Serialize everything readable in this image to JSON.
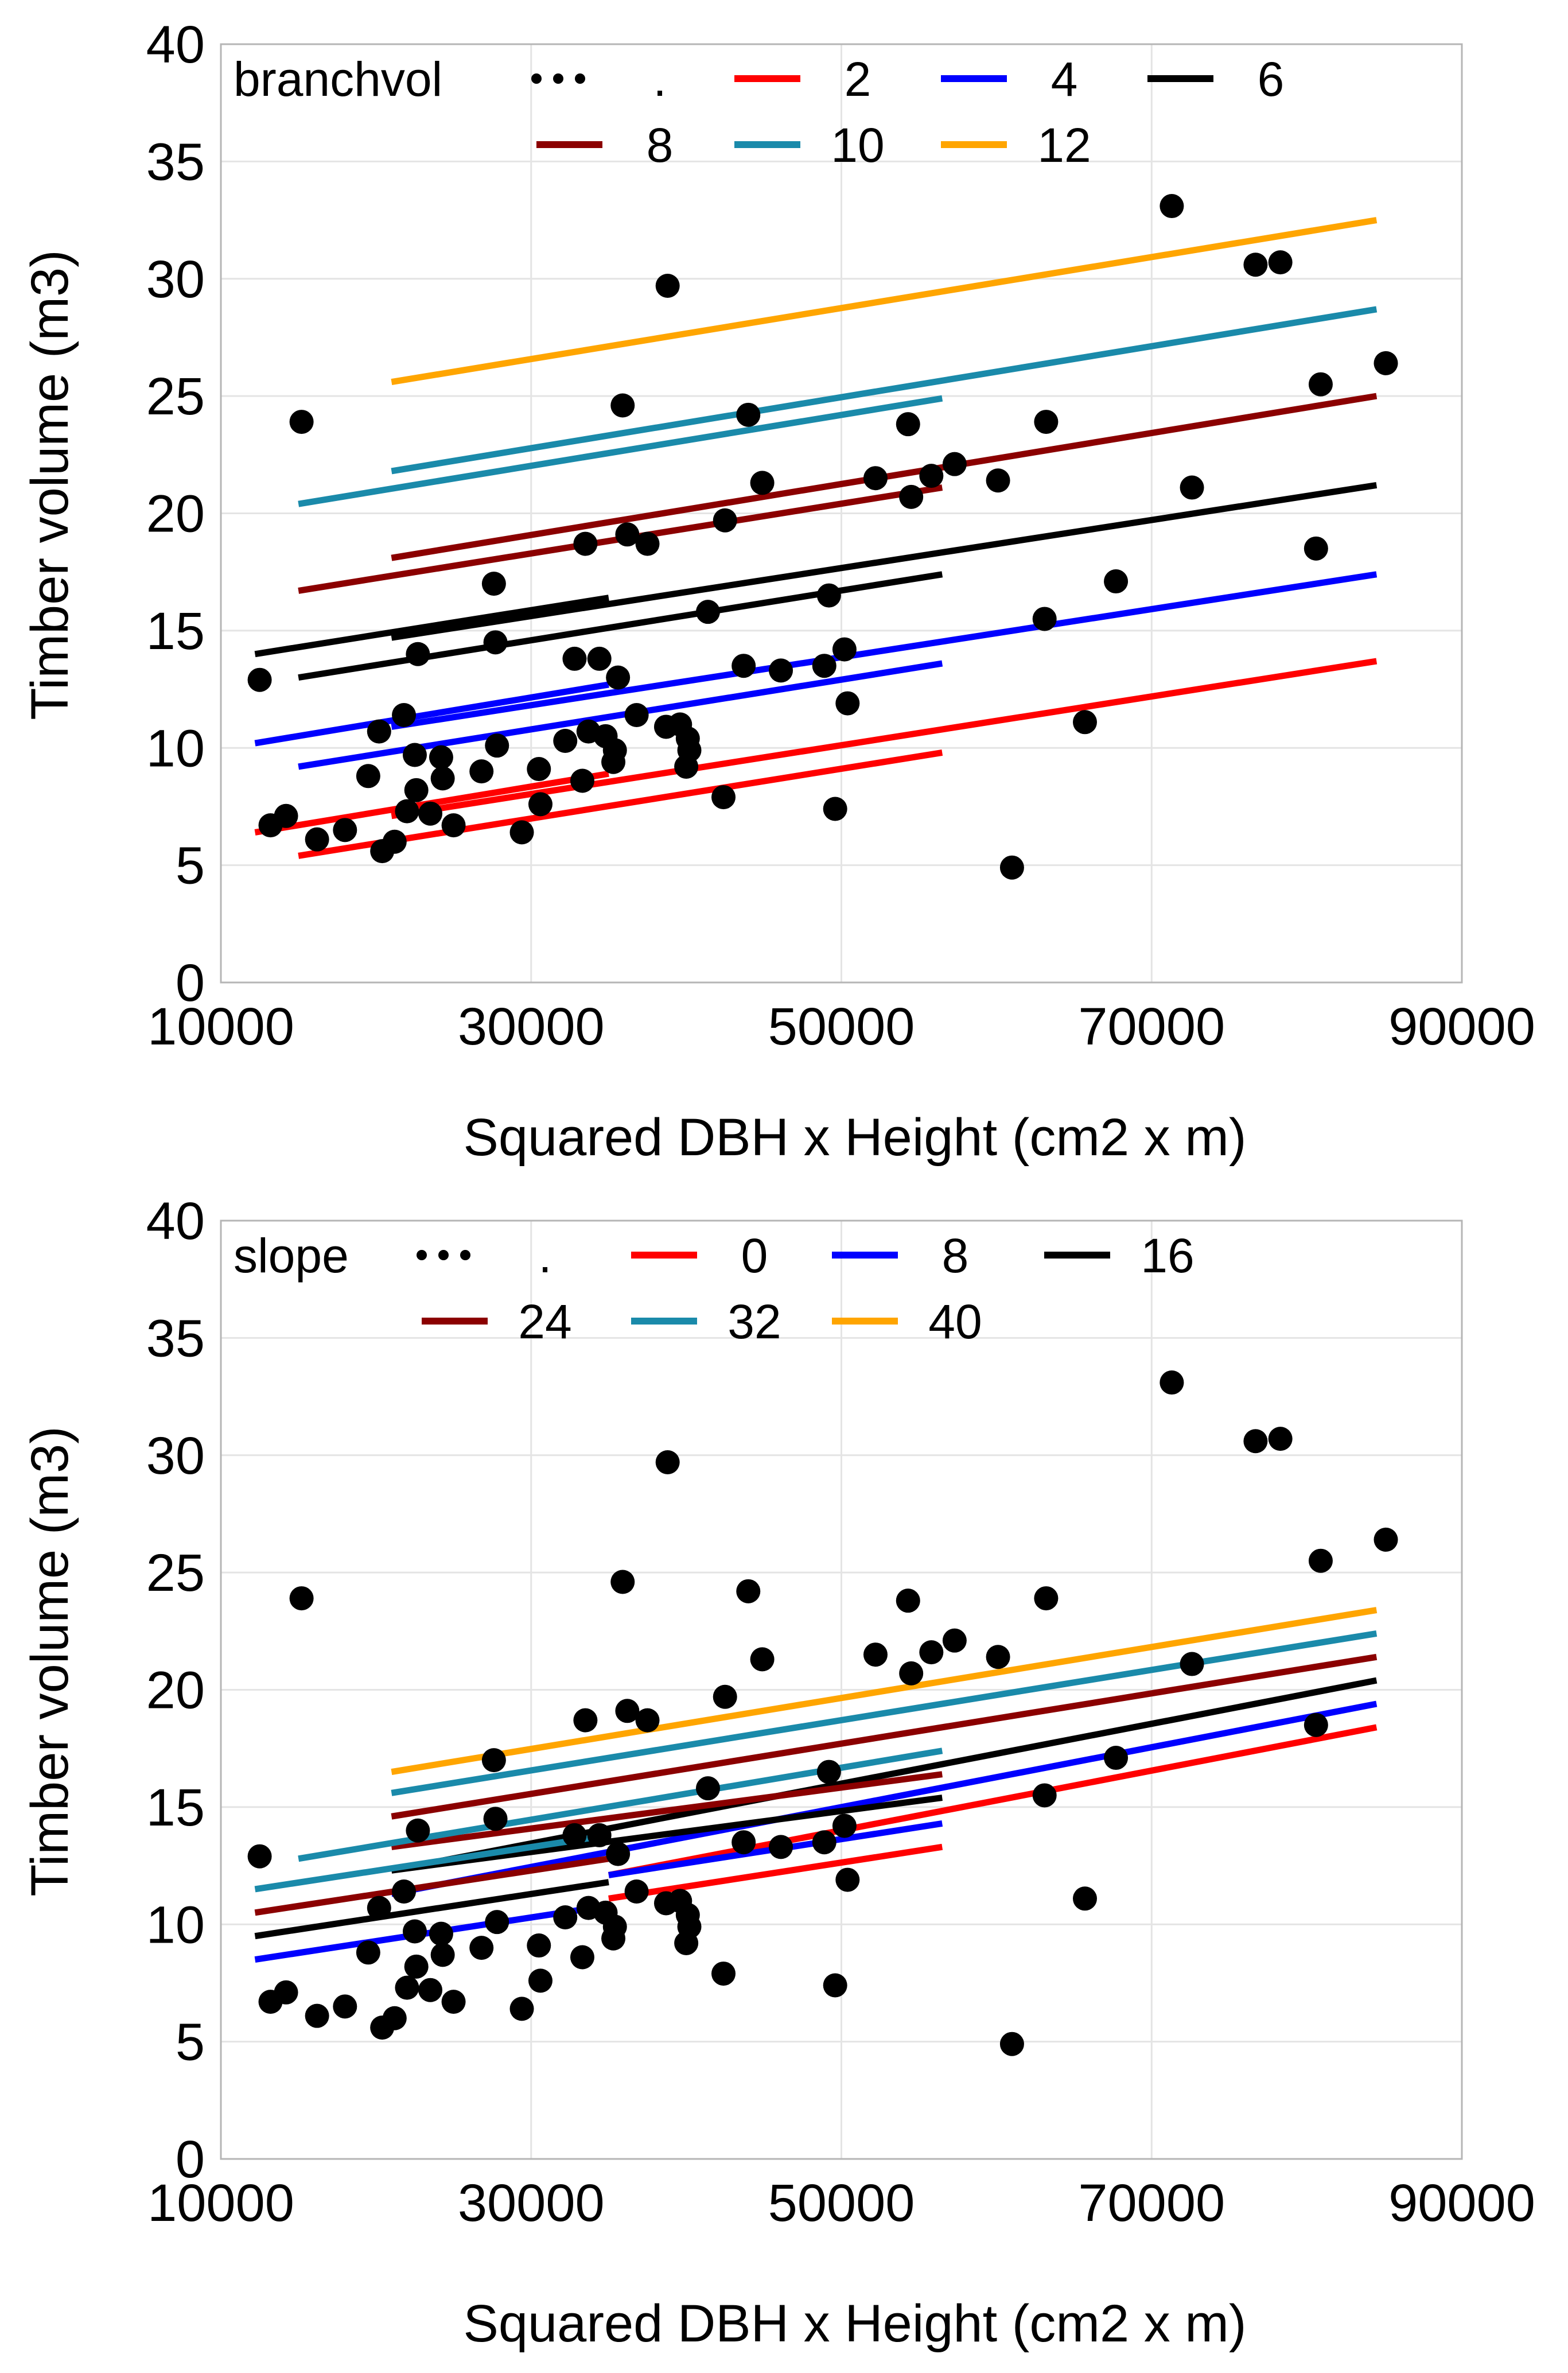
{
  "chart_data": [
    {
      "type": "scatter",
      "xlabel": "Squared DBH x Height (cm2 x m)",
      "ylabel": "Timber volume (m3)",
      "xlim": [
        10000,
        90000
      ],
      "ylim": [
        0,
        40
      ],
      "xticks": [
        "10000",
        "30000",
        "50000",
        "70000",
        "90000"
      ],
      "yticks": [
        "0",
        "5",
        "10",
        "15",
        "20",
        "25",
        "30",
        "35",
        "40"
      ],
      "grid": true,
      "legend": {
        "title": "branchvol",
        "placement": "top-left",
        "entries": [
          {
            "label": ".",
            "style": "dots",
            "color": "#000000"
          },
          {
            "label": "2",
            "style": "line",
            "color": "#ff0000"
          },
          {
            "label": "4",
            "style": "line",
            "color": "#0000ff"
          },
          {
            "label": "6",
            "style": "line",
            "color": "#000000"
          },
          {
            "label": "8",
            "style": "line",
            "color": "#8b0000"
          },
          {
            "label": "10",
            "style": "line",
            "color": "#1a8aaa"
          },
          {
            "label": "12",
            "style": "line",
            "color": "#ffa500"
          }
        ]
      },
      "points": [
        [
          12500,
          12.9
        ],
        [
          13200,
          6.7
        ],
        [
          14200,
          7.1
        ],
        [
          15200,
          23.9
        ],
        [
          16200,
          6.1
        ],
        [
          18000,
          6.5
        ],
        [
          19500,
          8.8
        ],
        [
          20200,
          10.7
        ],
        [
          20400,
          5.6
        ],
        [
          21200,
          6.0
        ],
        [
          21800,
          11.4
        ],
        [
          22000,
          7.3
        ],
        [
          22500,
          9.7
        ],
        [
          22600,
          8.2
        ],
        [
          22700,
          14.0
        ],
        [
          23500,
          7.2
        ],
        [
          24200,
          9.6
        ],
        [
          24300,
          8.7
        ],
        [
          25000,
          6.7
        ],
        [
          26800,
          9.0
        ],
        [
          27600,
          17.0
        ],
        [
          27700,
          14.5
        ],
        [
          27800,
          10.1
        ],
        [
          29400,
          6.4
        ],
        [
          30500,
          9.1
        ],
        [
          30600,
          7.6
        ],
        [
          32200,
          10.3
        ],
        [
          32800,
          13.8
        ],
        [
          33300,
          8.6
        ],
        [
          33500,
          18.7
        ],
        [
          33700,
          10.7
        ],
        [
          34400,
          13.8
        ],
        [
          34800,
          10.5
        ],
        [
          35300,
          9.4
        ],
        [
          35400,
          9.9
        ],
        [
          35600,
          13.0
        ],
        [
          35900,
          24.6
        ],
        [
          36200,
          19.1
        ],
        [
          36800,
          11.4
        ],
        [
          37500,
          18.7
        ],
        [
          38700,
          10.9
        ],
        [
          38800,
          29.7
        ],
        [
          39600,
          11.0
        ],
        [
          40000,
          9.2
        ],
        [
          40100,
          10.4
        ],
        [
          40200,
          9.9
        ],
        [
          41400,
          15.8
        ],
        [
          42400,
          7.9
        ],
        [
          42500,
          19.7
        ],
        [
          43700,
          13.5
        ],
        [
          44000,
          24.2
        ],
        [
          44900,
          21.3
        ],
        [
          46100,
          13.3
        ],
        [
          48900,
          13.5
        ],
        [
          49200,
          16.5
        ],
        [
          49600,
          7.4
        ],
        [
          50200,
          14.2
        ],
        [
          50400,
          11.9
        ],
        [
          52200,
          21.5
        ],
        [
          54300,
          23.8
        ],
        [
          54500,
          20.7
        ],
        [
          55800,
          21.6
        ],
        [
          57300,
          22.1
        ],
        [
          60100,
          21.4
        ],
        [
          61000,
          4.9
        ],
        [
          63100,
          15.5
        ],
        [
          63200,
          23.9
        ],
        [
          65700,
          11.1
        ],
        [
          67700,
          17.1
        ],
        [
          71300,
          33.1
        ],
        [
          72600,
          21.1
        ],
        [
          76700,
          30.6
        ],
        [
          78300,
          30.7
        ],
        [
          80600,
          18.5
        ],
        [
          80900,
          25.5
        ],
        [
          85100,
          26.4
        ]
      ],
      "series": [
        {
          "name": "2",
          "color": "#ff0000",
          "lines": [
            [
              [
                12200,
                6.4
              ],
              [
                35000,
                8.9
              ]
            ],
            [
              [
                15000,
                5.4
              ],
              [
                56500,
                9.8
              ]
            ],
            [
              [
                21000,
                7.1
              ],
              [
                84500,
                13.7
              ]
            ]
          ]
        },
        {
          "name": "4",
          "color": "#0000ff",
          "lines": [
            [
              [
                12200,
                10.2
              ],
              [
                35000,
                12.7
              ]
            ],
            [
              [
                15000,
                9.2
              ],
              [
                56500,
                13.6
              ]
            ],
            [
              [
                21000,
                10.9
              ],
              [
                84500,
                17.4
              ]
            ]
          ]
        },
        {
          "name": "6",
          "color": "#000000",
          "lines": [
            [
              [
                12200,
                14.0
              ],
              [
                35000,
                16.4
              ]
            ],
            [
              [
                15000,
                13.0
              ],
              [
                56500,
                17.4
              ]
            ],
            [
              [
                21000,
                14.7
              ],
              [
                84500,
                21.2
              ]
            ]
          ]
        },
        {
          "name": "8",
          "color": "#8b0000",
          "lines": [
            [
              [
                15000,
                16.7
              ],
              [
                56500,
                21.1
              ]
            ],
            [
              [
                21000,
                18.1
              ],
              [
                84500,
                25.0
              ]
            ]
          ]
        },
        {
          "name": "10",
          "color": "#1a8aaa",
          "lines": [
            [
              [
                15000,
                20.4
              ],
              [
                56500,
                24.9
              ]
            ],
            [
              [
                21000,
                21.8
              ],
              [
                84500,
                28.7
              ]
            ]
          ]
        },
        {
          "name": "12",
          "color": "#ffa500",
          "lines": [
            [
              [
                21000,
                25.6
              ],
              [
                84500,
                32.5
              ]
            ]
          ]
        }
      ]
    },
    {
      "type": "scatter",
      "xlabel": "Squared DBH x Height (cm2 x m)",
      "ylabel": "Timber volume (m3)",
      "xlim": [
        10000,
        90000
      ],
      "ylim": [
        0,
        40
      ],
      "xticks": [
        "10000",
        "30000",
        "50000",
        "70000",
        "90000"
      ],
      "yticks": [
        "0",
        "5",
        "10",
        "15",
        "20",
        "25",
        "30",
        "35",
        "40"
      ],
      "grid": true,
      "legend": {
        "title": "slope",
        "placement": "top-left",
        "entries": [
          {
            "label": ".",
            "style": "dots",
            "color": "#000000"
          },
          {
            "label": "0",
            "style": "line",
            "color": "#ff0000"
          },
          {
            "label": "8",
            "style": "line",
            "color": "#0000ff"
          },
          {
            "label": "16",
            "style": "line",
            "color": "#000000"
          },
          {
            "label": "24",
            "style": "line",
            "color": "#8b0000"
          },
          {
            "label": "32",
            "style": "line",
            "color": "#1a8aaa"
          },
          {
            "label": "40",
            "style": "line",
            "color": "#ffa500"
          }
        ]
      },
      "points": [
        [
          12500,
          12.9
        ],
        [
          13200,
          6.7
        ],
        [
          14200,
          7.1
        ],
        [
          15200,
          23.9
        ],
        [
          16200,
          6.1
        ],
        [
          18000,
          6.5
        ],
        [
          19500,
          8.8
        ],
        [
          20200,
          10.7
        ],
        [
          20400,
          5.6
        ],
        [
          21200,
          6.0
        ],
        [
          21800,
          11.4
        ],
        [
          22000,
          7.3
        ],
        [
          22500,
          9.7
        ],
        [
          22600,
          8.2
        ],
        [
          22700,
          14.0
        ],
        [
          23500,
          7.2
        ],
        [
          24200,
          9.6
        ],
        [
          24300,
          8.7
        ],
        [
          25000,
          6.7
        ],
        [
          26800,
          9.0
        ],
        [
          27600,
          17.0
        ],
        [
          27700,
          14.5
        ],
        [
          27800,
          10.1
        ],
        [
          29400,
          6.4
        ],
        [
          30500,
          9.1
        ],
        [
          30600,
          7.6
        ],
        [
          32200,
          10.3
        ],
        [
          32800,
          13.8
        ],
        [
          33300,
          8.6
        ],
        [
          33500,
          18.7
        ],
        [
          33700,
          10.7
        ],
        [
          34400,
          13.8
        ],
        [
          34800,
          10.5
        ],
        [
          35300,
          9.4
        ],
        [
          35400,
          9.9
        ],
        [
          35600,
          13.0
        ],
        [
          35900,
          24.6
        ],
        [
          36200,
          19.1
        ],
        [
          36800,
          11.4
        ],
        [
          37500,
          18.7
        ],
        [
          38700,
          10.9
        ],
        [
          38800,
          29.7
        ],
        [
          39600,
          11.0
        ],
        [
          40000,
          9.2
        ],
        [
          40100,
          10.4
        ],
        [
          40200,
          9.9
        ],
        [
          41400,
          15.8
        ],
        [
          42400,
          7.9
        ],
        [
          42500,
          19.7
        ],
        [
          43700,
          13.5
        ],
        [
          44000,
          24.2
        ],
        [
          44900,
          21.3
        ],
        [
          46100,
          13.3
        ],
        [
          48900,
          13.5
        ],
        [
          49200,
          16.5
        ],
        [
          49600,
          7.4
        ],
        [
          50200,
          14.2
        ],
        [
          50400,
          11.9
        ],
        [
          52200,
          21.5
        ],
        [
          54300,
          23.8
        ],
        [
          54500,
          20.7
        ],
        [
          55800,
          21.6
        ],
        [
          57300,
          22.1
        ],
        [
          60100,
          21.4
        ],
        [
          61000,
          4.9
        ],
        [
          63100,
          15.5
        ],
        [
          63200,
          23.9
        ],
        [
          65700,
          11.1
        ],
        [
          67700,
          17.1
        ],
        [
          71300,
          33.1
        ],
        [
          72600,
          21.1
        ],
        [
          76700,
          30.6
        ],
        [
          78300,
          30.7
        ],
        [
          80600,
          18.5
        ],
        [
          80900,
          25.5
        ],
        [
          85100,
          26.4
        ]
      ],
      "series": [
        {
          "name": "0",
          "color": "#ff0000",
          "lines": [
            [
              [
                35000,
                11.1
              ],
              [
                56500,
                13.3
              ]
            ],
            [
              [
                35000,
                12.1
              ],
              [
                84500,
                18.4
              ]
            ]
          ]
        },
        {
          "name": "8",
          "color": "#0000ff",
          "lines": [
            [
              [
                12200,
                8.5
              ],
              [
                35000,
                10.8
              ]
            ],
            [
              [
                35000,
                12.1
              ],
              [
                56500,
                14.3
              ]
            ],
            [
              [
                21000,
                11.3
              ],
              [
                84500,
                19.4
              ]
            ]
          ]
        },
        {
          "name": "16",
          "color": "#000000",
          "lines": [
            [
              [
                12200,
                9.5
              ],
              [
                35000,
                11.8
              ]
            ],
            [
              [
                21000,
                12.3
              ],
              [
                56500,
                15.4
              ]
            ],
            [
              [
                21000,
                12.3
              ],
              [
                84500,
                20.4
              ]
            ]
          ]
        },
        {
          "name": "24",
          "color": "#8b0000",
          "lines": [
            [
              [
                12200,
                10.5
              ],
              [
                35000,
                12.8
              ]
            ],
            [
              [
                21000,
                13.3
              ],
              [
                56500,
                16.4
              ]
            ],
            [
              [
                21000,
                14.6
              ],
              [
                84500,
                21.4
              ]
            ]
          ]
        },
        {
          "name": "32",
          "color": "#1a8aaa",
          "lines": [
            [
              [
                12200,
                11.5
              ],
              [
                35000,
                13.8
              ]
            ],
            [
              [
                15000,
                12.8
              ],
              [
                56500,
                17.4
              ]
            ],
            [
              [
                21000,
                15.6
              ],
              [
                84500,
                22.4
              ]
            ]
          ]
        },
        {
          "name": "40",
          "color": "#ffa500",
          "lines": [
            [
              [
                21000,
                16.5
              ],
              [
                84500,
                23.4
              ]
            ]
          ]
        }
      ]
    }
  ]
}
